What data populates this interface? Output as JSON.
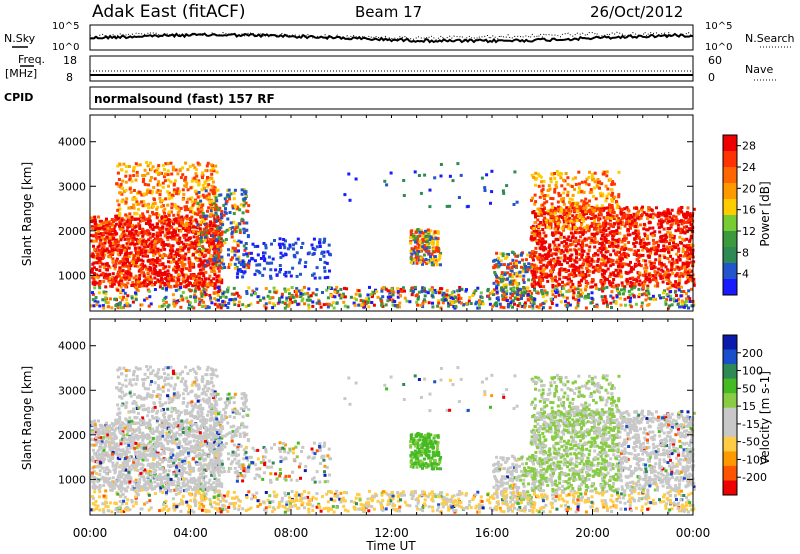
{
  "header": {
    "title": "Adak East (fitACF)",
    "beam": "Beam 17",
    "date": "26/Oct/2012"
  },
  "top_panels": {
    "nsky_label": "N.Sky",
    "nsky_tick_top": "10^5",
    "nsky_tick_bottom": "10^0",
    "nsearch_label": "N.Search",
    "nsearch_tick_top": "10^5",
    "nsearch_tick_bottom": "10^0",
    "freq_label": "Freq.",
    "freq_unit": "[MHz]",
    "freq_tick_top": "18",
    "freq_tick_bottom": "8",
    "nave_label": "Nave",
    "nave_tick_top": "60",
    "nave_tick_bottom": "0",
    "cpid_label": "CPID",
    "cpid_text": "normalsound (fast) 157 RF"
  },
  "colors": {
    "power": [
      "#1a1aff",
      "#2255cc",
      "#2e8a55",
      "#3c9a3c",
      "#77cc33",
      "#ffcc00",
      "#ff9900",
      "#ff6600",
      "#ff3300",
      "#ee0000"
    ],
    "velocity": [
      "#ee0000",
      "#ff5500",
      "#ff9900",
      "#ffcc44",
      "#c8c8c8",
      "#c8c8c8",
      "#88cc44",
      "#44bb22",
      "#2e8a55",
      "#1a4fcc",
      "#0a1aaa"
    ]
  },
  "chart_data": [
    {
      "type": "heatmap",
      "name": "power",
      "ylabel": "Slant Range [km]",
      "ylim": [
        200,
        4600
      ],
      "yticks": [
        1000,
        2000,
        3000,
        4000
      ],
      "xlim": [
        0,
        24
      ],
      "colorbar": {
        "label": "Power [dB]",
        "ticks": [
          "4",
          "8",
          "12",
          "16",
          "20",
          "24",
          "28"
        ],
        "range": [
          0,
          30
        ]
      }
    },
    {
      "type": "heatmap",
      "name": "velocity",
      "ylabel": "Slant Range [km]",
      "ylim": [
        200,
        4600
      ],
      "yticks": [
        1000,
        2000,
        3000,
        4000
      ],
      "xlim": [
        0,
        24
      ],
      "colorbar": {
        "label": "Velocity [m s-1]",
        "ticks": [
          "200",
          "100",
          "50",
          "15",
          "-15",
          "-50",
          "-100",
          "-200"
        ]
      }
    }
  ],
  "x_axis": {
    "label": "Time UT",
    "ticks": [
      "00:00",
      "04:00",
      "08:00",
      "12:00",
      "16:00",
      "20:00",
      "00:00"
    ]
  }
}
